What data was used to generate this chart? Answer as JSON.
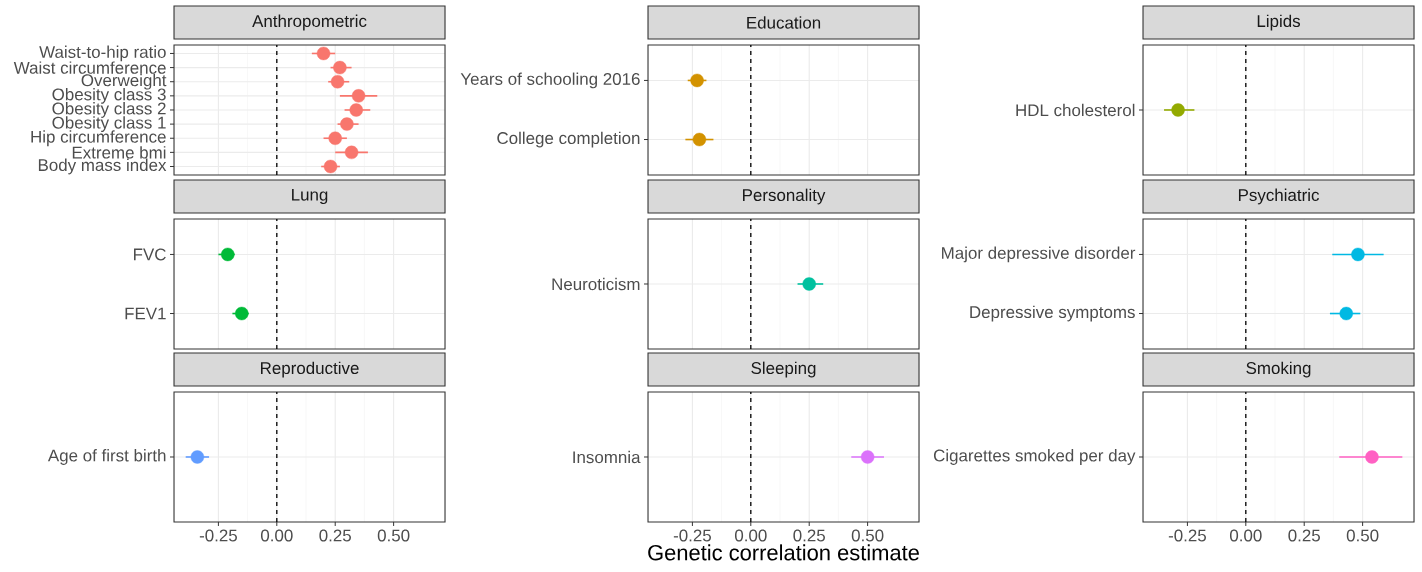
{
  "chart_data": [
    {
      "type": "scatter",
      "title": "Anthropometric",
      "orientation": "horizontal",
      "grid": true,
      "tick_labels": "y",
      "xlim": [
        -0.44,
        0.72
      ],
      "xticks": [
        -0.25,
        0,
        0.25,
        0.5
      ],
      "ref_lines": [
        {
          "axis": "x",
          "value": 0,
          "line_style": "dashed",
          "color": "#000000"
        }
      ],
      "color": "#f8766d",
      "categories": [
        "Waist-to-hip ratio",
        "Waist circumference",
        "Overweight",
        "Obesity class 3",
        "Obesity class 2",
        "Obesity class 1",
        "Hip circumference",
        "Extreme bmi",
        "Body mass index"
      ],
      "values": [
        0.2,
        0.27,
        0.26,
        0.35,
        0.34,
        0.3,
        0.25,
        0.32,
        0.23
      ],
      "errors": [
        [
          0.15,
          0.25
        ],
        [
          0.23,
          0.32
        ],
        [
          0.22,
          0.31
        ],
        [
          0.27,
          0.43
        ],
        [
          0.29,
          0.4
        ],
        [
          0.26,
          0.35
        ],
        [
          0.2,
          0.3
        ],
        [
          0.25,
          0.39
        ],
        [
          0.19,
          0.27
        ]
      ]
    },
    {
      "type": "scatter",
      "title": "Education",
      "orientation": "horizontal",
      "grid": true,
      "tick_labels": "y",
      "xlim": [
        -0.44,
        0.72
      ],
      "xticks": [
        -0.25,
        0,
        0.25,
        0.5
      ],
      "ref_lines": [
        {
          "axis": "x",
          "value": 0,
          "line_style": "dashed",
          "color": "#000000"
        }
      ],
      "color": "#d39200",
      "categories": [
        "Years of schooling 2016",
        "College completion"
      ],
      "values": [
        -0.23,
        -0.22
      ],
      "errors": [
        [
          -0.27,
          -0.19
        ],
        [
          -0.28,
          -0.16
        ]
      ]
    },
    {
      "type": "scatter",
      "title": "Lipids",
      "orientation": "horizontal",
      "grid": true,
      "tick_labels": "y",
      "xlim": [
        -0.44,
        0.72
      ],
      "xticks": [
        -0.25,
        0,
        0.25,
        0.5
      ],
      "ref_lines": [
        {
          "axis": "x",
          "value": 0,
          "line_style": "dashed",
          "color": "#000000"
        }
      ],
      "color": "#93aa00",
      "categories": [
        "HDL cholesterol"
      ],
      "values": [
        -0.29
      ],
      "errors": [
        [
          -0.35,
          -0.22
        ]
      ]
    },
    {
      "type": "scatter",
      "title": "Lung",
      "orientation": "horizontal",
      "grid": true,
      "tick_labels": "y",
      "xlim": [
        -0.44,
        0.72
      ],
      "xticks": [
        -0.25,
        0,
        0.25,
        0.5
      ],
      "ref_lines": [
        {
          "axis": "x",
          "value": 0,
          "line_style": "dashed",
          "color": "#000000"
        }
      ],
      "color": "#00ba38",
      "categories": [
        "FVC",
        "FEV1"
      ],
      "values": [
        -0.21,
        -0.15
      ],
      "errors": [
        [
          -0.25,
          -0.18
        ],
        [
          -0.19,
          -0.12
        ]
      ]
    },
    {
      "type": "scatter",
      "title": "Personality",
      "orientation": "horizontal",
      "grid": true,
      "tick_labels": "y",
      "xlim": [
        -0.44,
        0.72
      ],
      "xticks": [
        -0.25,
        0,
        0.25,
        0.5
      ],
      "ref_lines": [
        {
          "axis": "x",
          "value": 0,
          "line_style": "dashed",
          "color": "#000000"
        }
      ],
      "color": "#00c19f",
      "categories": [
        "Neuroticism"
      ],
      "values": [
        0.25
      ],
      "errors": [
        [
          0.2,
          0.31
        ]
      ]
    },
    {
      "type": "scatter",
      "title": "Psychiatric",
      "orientation": "horizontal",
      "grid": true,
      "tick_labels": "y",
      "xlim": [
        -0.44,
        0.72
      ],
      "xticks": [
        -0.25,
        0,
        0.25,
        0.5
      ],
      "ref_lines": [
        {
          "axis": "x",
          "value": 0,
          "line_style": "dashed",
          "color": "#000000"
        }
      ],
      "color": "#00b9e3",
      "categories": [
        "Major depressive disorder",
        "Depressive symptoms"
      ],
      "values": [
        0.48,
        0.43
      ],
      "errors": [
        [
          0.37,
          0.59
        ],
        [
          0.36,
          0.49
        ]
      ]
    },
    {
      "type": "scatter",
      "title": "Reproductive",
      "orientation": "horizontal",
      "grid": true,
      "xlim": [
        -0.44,
        0.72
      ],
      "xticks": [
        {
          "value": -0.25,
          "label": "-0.25"
        },
        {
          "value": 0,
          "label": "0.00"
        },
        {
          "value": 0.25,
          "label": "0.25"
        },
        {
          "value": 0.5,
          "label": "0.50"
        }
      ],
      "ref_lines": [
        {
          "axis": "x",
          "value": 0,
          "line_style": "dashed",
          "color": "#000000"
        }
      ],
      "color": "#619cff",
      "categories": [
        "Age of first birth"
      ],
      "values": [
        -0.34
      ],
      "errors": [
        [
          -0.39,
          -0.29
        ]
      ]
    },
    {
      "type": "scatter",
      "title": "Sleeping",
      "xlabel": "Genetic correlation estimate",
      "orientation": "horizontal",
      "grid": true,
      "xlim": [
        -0.44,
        0.72
      ],
      "xticks": [
        {
          "value": -0.25,
          "label": "-0.25"
        },
        {
          "value": 0,
          "label": "0.00"
        },
        {
          "value": 0.25,
          "label": "0.25"
        },
        {
          "value": 0.5,
          "label": "0.50"
        }
      ],
      "ref_lines": [
        {
          "axis": "x",
          "value": 0,
          "line_style": "dashed",
          "color": "#000000"
        }
      ],
      "color": "#db72fb",
      "categories": [
        "Insomnia"
      ],
      "values": [
        0.5
      ],
      "errors": [
        [
          0.43,
          0.57
        ]
      ]
    },
    {
      "type": "scatter",
      "title": "Smoking",
      "orientation": "horizontal",
      "grid": true,
      "xlim": [
        -0.44,
        0.72
      ],
      "xticks": [
        {
          "value": -0.25,
          "label": "-0.25"
        },
        {
          "value": 0,
          "label": "0.00"
        },
        {
          "value": 0.25,
          "label": "0.25"
        },
        {
          "value": 0.5,
          "label": "0.50"
        }
      ],
      "ref_lines": [
        {
          "axis": "x",
          "value": 0,
          "line_style": "dashed",
          "color": "#000000"
        }
      ],
      "color": "#ff61c3",
      "categories": [
        "Cigarettes smoked per day"
      ],
      "values": [
        0.54
      ],
      "errors": [
        [
          0.4,
          0.67
        ]
      ]
    }
  ]
}
